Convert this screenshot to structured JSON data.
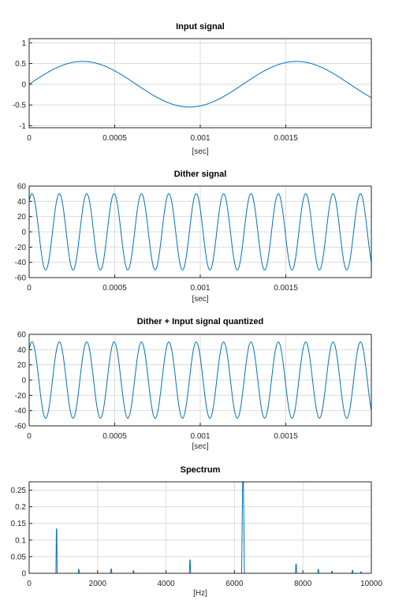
{
  "chart_data": [
    {
      "type": "line",
      "title": "Input signal",
      "xlabel": "[sec]",
      "ylabel": "",
      "xlim": [
        0,
        0.002
      ],
      "ylim": [
        -1.05,
        1.1
      ],
      "xticks": [
        0,
        0.0005,
        0.001,
        0.0015
      ],
      "xtick_labels": [
        "0",
        "0.0005",
        "0.001",
        "0.0015"
      ],
      "yticks": [
        1,
        0.5,
        0,
        -0.5,
        -1
      ],
      "ytick_labels": [
        "1",
        "0.5",
        "0",
        "-0.5",
        "-1"
      ],
      "grid": true,
      "series": [
        {
          "color": "#0072bd",
          "function": "sine",
          "amplitude": 0.55,
          "frequency_hz": 800,
          "phase_at_start_value": 0.0
        }
      ]
    },
    {
      "type": "line",
      "title": "Dither signal",
      "xlabel": "[sec]",
      "ylabel": "",
      "xlim": [
        0,
        0.002
      ],
      "ylim": [
        -60,
        60
      ],
      "xticks": [
        0,
        0.0005,
        0.001,
        0.0015
      ],
      "xtick_labels": [
        "0",
        "0.0005",
        "0.001",
        "0.0015"
      ],
      "yticks": [
        60,
        40,
        20,
        0,
        -20,
        -40,
        -60
      ],
      "ytick_labels": [
        "60",
        "40",
        "20",
        "0",
        "-20",
        "-40",
        "-60"
      ],
      "grid": true,
      "series": [
        {
          "color": "#0072bd",
          "function": "sine",
          "amplitude": 50,
          "frequency_hz": 6250,
          "start_value": 40
        }
      ]
    },
    {
      "type": "line",
      "title": "Dither + Input signal quantized",
      "xlabel": "[sec]",
      "ylabel": "",
      "xlim": [
        0,
        0.002
      ],
      "ylim": [
        -60,
        60
      ],
      "xticks": [
        0,
        0.0005,
        0.001,
        0.0015
      ],
      "xtick_labels": [
        "0",
        "0.0005",
        "0.001",
        "0.0015"
      ],
      "yticks": [
        60,
        40,
        20,
        0,
        -20,
        -40,
        -60
      ],
      "ytick_labels": [
        "60",
        "40",
        "20",
        "0",
        "-20",
        "-40",
        "-60"
      ],
      "grid": true,
      "series": [
        {
          "color": "#0072bd",
          "function": "sine",
          "amplitude": 50,
          "frequency_hz": 6250,
          "start_value": 40
        }
      ]
    },
    {
      "type": "line",
      "title": "Spectrum",
      "xlabel": "[Hz]",
      "ylabel": "",
      "xlim": [
        0,
        10000
      ],
      "ylim": [
        0,
        0.275
      ],
      "xticks": [
        0,
        2000,
        4000,
        6000,
        8000,
        10000
      ],
      "xtick_labels": [
        "0",
        "2000",
        "4000",
        "6000",
        "8000",
        "10000"
      ],
      "yticks": [
        0.25,
        0.2,
        0.15,
        0.1,
        0.05,
        0
      ],
      "ytick_labels": [
        "0.25",
        "0.2",
        "0.15",
        "0.1",
        "0.05",
        "0"
      ],
      "grid": true,
      "series": [
        {
          "color": "#0072bd",
          "peaks": [
            {
              "x": 800,
              "y": 0.133
            },
            {
              "x": 1450,
              "y": 0.012
            },
            {
              "x": 2400,
              "y": 0.013
            },
            {
              "x": 3050,
              "y": 0.008
            },
            {
              "x": 4700,
              "y": 0.04
            },
            {
              "x": 6250,
              "y": 0.275
            },
            {
              "x": 7800,
              "y": 0.028
            },
            {
              "x": 8450,
              "y": 0.012
            },
            {
              "x": 8850,
              "y": 0.006
            },
            {
              "x": 9450,
              "y": 0.009
            },
            {
              "x": 9700,
              "y": 0.004
            }
          ]
        }
      ]
    }
  ]
}
